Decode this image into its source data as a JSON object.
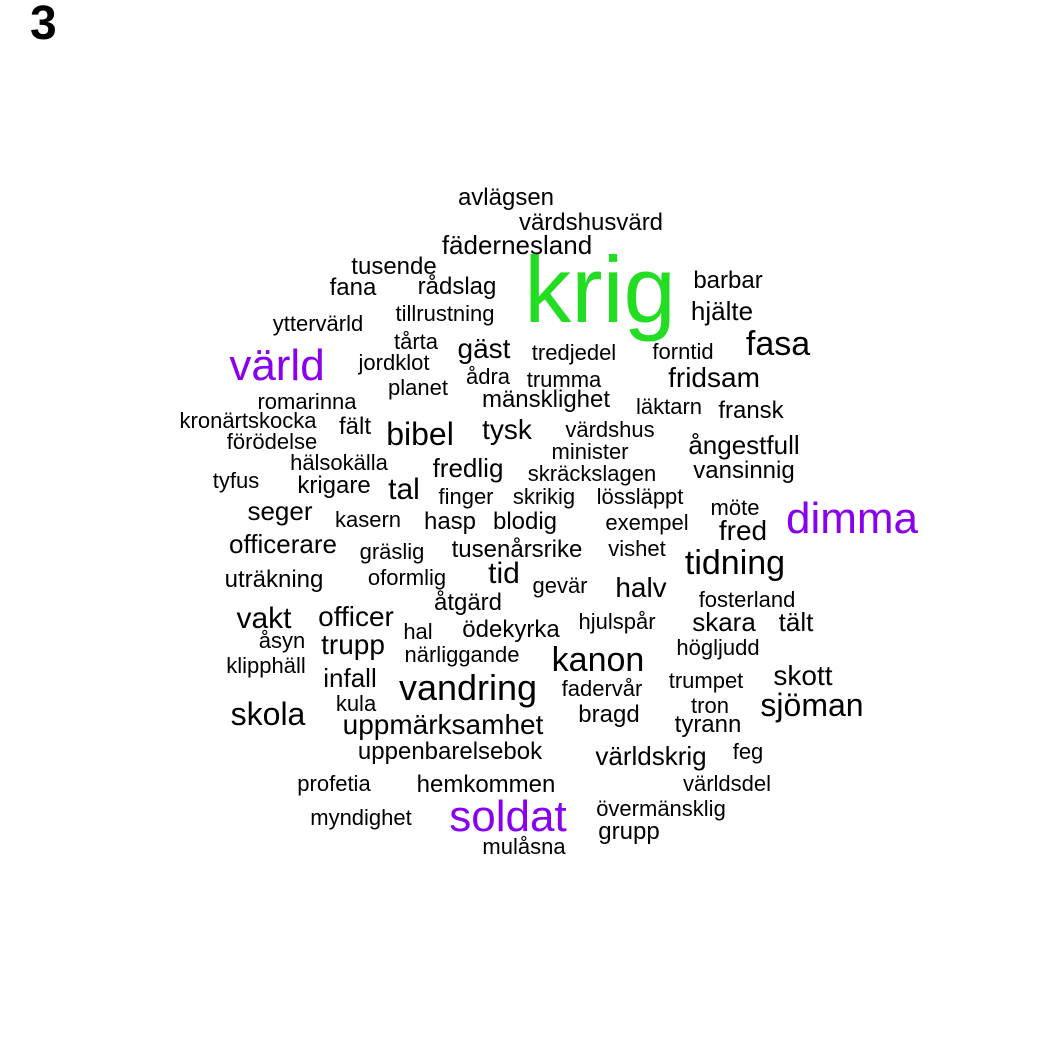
{
  "panel_label": "3",
  "colors": {
    "default": "#000000",
    "green": "#22dd22",
    "purple": "#8800ee"
  },
  "words": [
    {
      "text": "krig",
      "color": "green"
    },
    {
      "text": "värld",
      "color": "purple"
    },
    {
      "text": "dimma",
      "color": "purple"
    },
    {
      "text": "soldat",
      "color": "purple"
    },
    {
      "text": "avlägsen"
    },
    {
      "text": "värdshusvärd"
    },
    {
      "text": "fäderneslan"
    },
    {
      "text": "tusende"
    },
    {
      "text": "fana"
    },
    {
      "text": "rådslag"
    },
    {
      "text": "barbar"
    },
    {
      "text": "hjälte"
    },
    {
      "text": "tillrustning"
    },
    {
      "text": "ytterVärld"
    },
    {
      "text": "tårta"
    },
    {
      "text": "gäst"
    },
    {
      "text": "tredjedel"
    },
    {
      "text": "forntid"
    },
    {
      "text": "fasa"
    },
    {
      "text": "jordklot"
    },
    {
      "text": "ådra"
    },
    {
      "text": "trumma"
    },
    {
      "text": "fridsam"
    },
    {
      "text": "planet"
    },
    {
      "text": "mänsklighet"
    },
    {
      "text": "romarinna"
    },
    {
      "text": "läktarn"
    },
    {
      "text": "fransk"
    },
    {
      "text": "kronärtskocka"
    },
    {
      "text": "fält"
    },
    {
      "text": "bibel"
    },
    {
      "text": "tysk"
    },
    {
      "text": "värdshus"
    },
    {
      "text": "förödelse"
    },
    {
      "text": "ångestfull"
    },
    {
      "text": "minister"
    },
    {
      "text": "hälsokälla"
    },
    {
      "text": "fredlig"
    },
    {
      "text": "skräckslagen"
    },
    {
      "text": "vansinnig"
    },
    {
      "text": "tyfus"
    },
    {
      "text": "krigare"
    },
    {
      "text": "tal"
    },
    {
      "text": "finger"
    },
    {
      "text": "skrikig"
    },
    {
      "text": "lössläppt"
    },
    {
      "text": "seger"
    },
    {
      "text": "möte"
    },
    {
      "text": "kasern"
    },
    {
      "text": "hasp"
    },
    {
      "text": "blodig"
    },
    {
      "text": "exempel"
    },
    {
      "text": "fred"
    },
    {
      "text": "officerare"
    },
    {
      "text": "gräslig"
    },
    {
      "text": "tusenårsrike"
    },
    {
      "text": "vishet"
    },
    {
      "text": "tidning"
    },
    {
      "text": "uträkning"
    },
    {
      "text": "oformlig"
    },
    {
      "text": "tid"
    },
    {
      "text": "gevär"
    },
    {
      "text": "halv"
    },
    {
      "text": "åtgärd"
    },
    {
      "text": "fosterland"
    },
    {
      "text": "vakt"
    },
    {
      "text": "officer"
    },
    {
      "text": "hjulspår"
    },
    {
      "text": "skara"
    },
    {
      "text": "tält"
    },
    {
      "text": "åsyn"
    },
    {
      "text": "hal"
    },
    {
      "text": "ödekyrka"
    },
    {
      "text": "trupp"
    },
    {
      "text": "högljudd"
    },
    {
      "text": "klipphäll"
    },
    {
      "text": "närliggande"
    },
    {
      "text": "kanon"
    },
    {
      "text": "infall"
    },
    {
      "text": "trumpet"
    },
    {
      "text": "skott"
    },
    {
      "text": "vandring"
    },
    {
      "text": "fadervår"
    },
    {
      "text": "kula"
    },
    {
      "text": "tron"
    },
    {
      "text": "sjöman"
    },
    {
      "text": "skola"
    },
    {
      "text": "bragd"
    },
    {
      "text": "uppmärksamhet"
    },
    {
      "text": "tyrann"
    },
    {
      "text": "uppenbarelsebok"
    },
    {
      "text": "världskrig"
    },
    {
      "text": "feg"
    },
    {
      "text": "profetia"
    },
    {
      "text": "hemkommen"
    },
    {
      "text": "världsdel"
    },
    {
      "text": "myndighet"
    },
    {
      "text": "övermänsklig"
    },
    {
      "text": "grupp"
    },
    {
      "text": "mulåsna"
    }
  ]
}
